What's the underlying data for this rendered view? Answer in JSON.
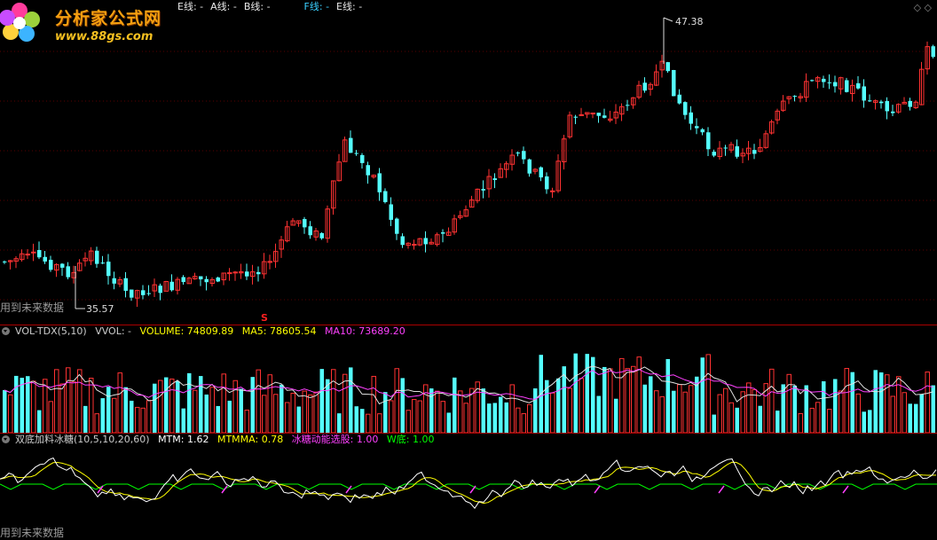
{
  "price_panel": {
    "legend_items": [
      {
        "text": "E线: -",
        "color": "#e8e8e8"
      },
      {
        "text": "A线: -",
        "color": "#e8e8e8"
      },
      {
        "text": "B线: -",
        "color": "#e8e8e8"
      },
      {
        "text": "F线: -",
        "color": "#3ad0ff"
      },
      {
        "text": "E线: -",
        "color": "#e8e8e8"
      }
    ],
    "high_label": "47.38",
    "low_label": "35.57",
    "future_data_note": "用到未来数据",
    "signal_marker": "S",
    "top_right_icons": "◇ ◇"
  },
  "logo": {
    "title": "分析家公式网",
    "url": "www.88gs.com"
  },
  "volume_panel": {
    "indicator_name": "VOL-TDX(5,10)",
    "vvol_label": "VVOL: -",
    "volume_label": "VOLUME: 74809.89",
    "ma5_label": "MA5: 78605.54",
    "ma10_label": "MA10: 73689.20"
  },
  "indicator_panel": {
    "indicator_name": "双底加料冰糖(10,5,10,20,60)",
    "mtm_label": "MTM: 1.62",
    "mtmma_label": "MTMMA: 0.78",
    "ice_label": "冰糖动能选股: 1.00",
    "wbottom_label": "W底: 1.00",
    "future_data_note": "用到未来数据"
  },
  "colors": {
    "up": "#ff3232",
    "down": "#54ffff",
    "ma5": "#e0e0e0",
    "ma10": "#ff40ff",
    "volume_label": "#ffff00",
    "mtm": "#ffffff",
    "mtmma": "#ffff00",
    "ice": "#ff40ff",
    "wbottom": "#00ff00"
  }
}
